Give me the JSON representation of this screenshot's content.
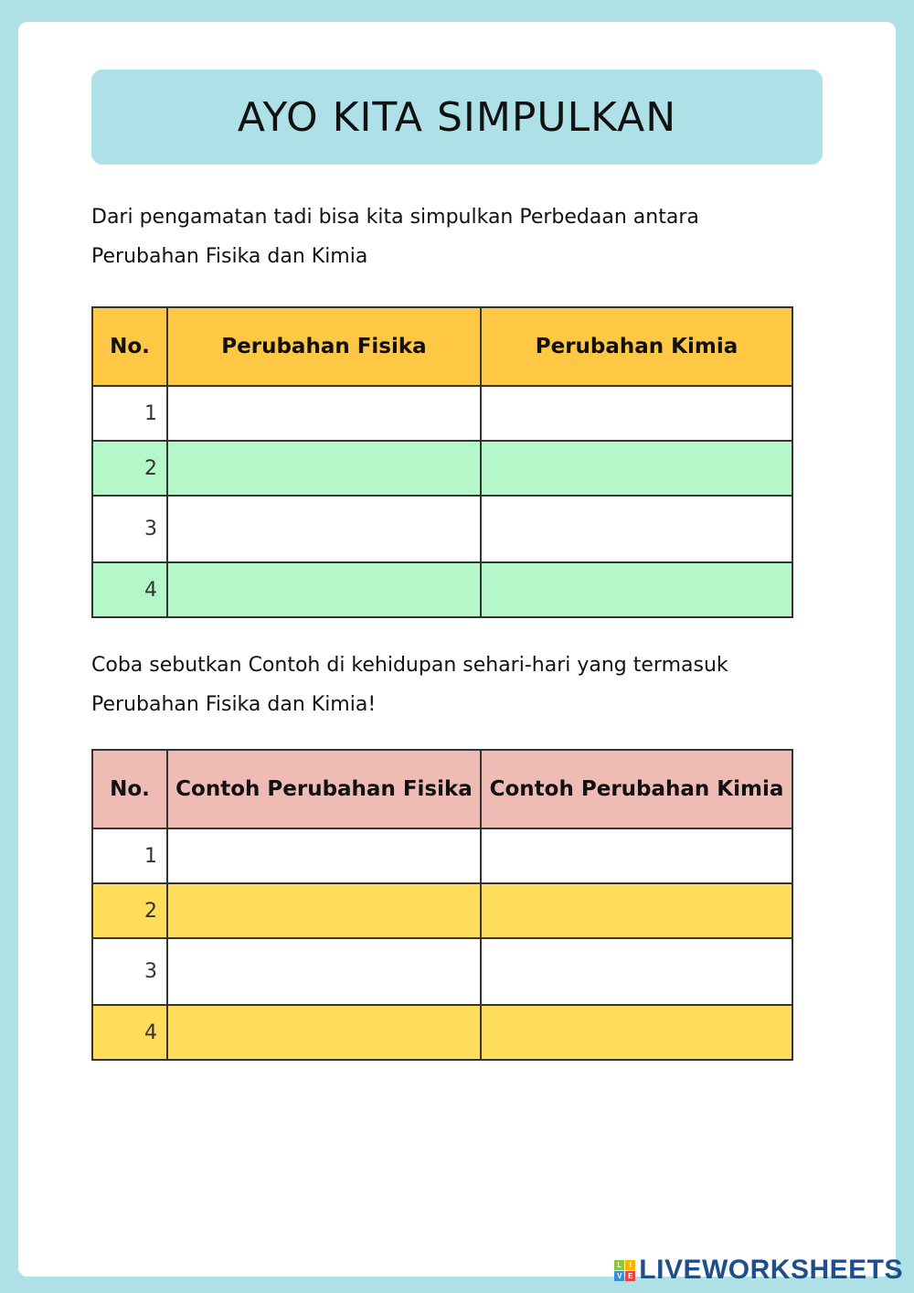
{
  "title": "AYO KITA SIMPULKAN",
  "intro1": {
    "line1": "Dari pengamatan tadi bisa kita simpulkan Perbedaan antara",
    "line2": "Perubahan Fisika dan Kimia"
  },
  "table1": {
    "headers": [
      "No.",
      "Perubahan Fisika",
      "Perubahan Kimia"
    ],
    "rows": [
      {
        "no": "1",
        "a": "",
        "b": ""
      },
      {
        "no": "2",
        "a": "",
        "b": ""
      },
      {
        "no": "3",
        "a": "",
        "b": ""
      },
      {
        "no": "4",
        "a": "",
        "b": ""
      }
    ],
    "colors": {
      "header": "#fec844",
      "alt_row": "#b4f7c8"
    }
  },
  "intro2": {
    "line1": "Coba sebutkan Contoh di kehidupan sehari-hari yang termasuk",
    "line2": "Perubahan Fisika dan Kimia!"
  },
  "table2": {
    "headers": [
      "No.",
      "Contoh Perubahan Fisika",
      "Contoh Perubahan Kimia"
    ],
    "rows": [
      {
        "no": "1",
        "a": "",
        "b": ""
      },
      {
        "no": "2",
        "a": "",
        "b": ""
      },
      {
        "no": "3",
        "a": "",
        "b": ""
      },
      {
        "no": "4",
        "a": "",
        "b": ""
      }
    ],
    "colors": {
      "header": "#eebcb5",
      "alt_row": "#ffdd5a"
    }
  },
  "logo": {
    "text": "LIVEWORKSHEETS",
    "letters": [
      "L",
      "I",
      "V",
      "E"
    ]
  }
}
